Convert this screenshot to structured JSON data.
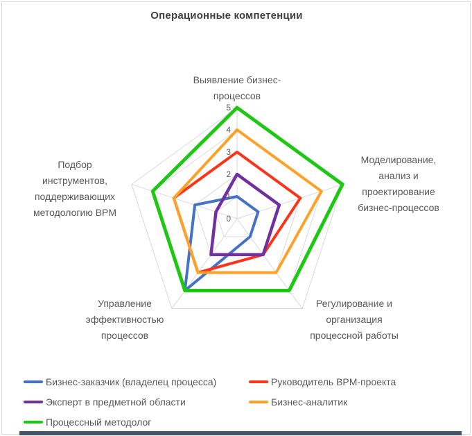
{
  "title": "Операционные компетенции",
  "chart_data": {
    "type": "radar",
    "title": "Операционные компетенции",
    "axes": [
      "Выявление бизнес-процессов",
      "Моделирование, анализ и проектирование бизнес-процессов",
      "Регулирование и организация процессной работы",
      "Управление эффективностью процессов",
      "Подбор инструментов, поддерживающих методологию BPM"
    ],
    "axis_labels_display": [
      "Выявление бизнес-\nпроцессов",
      "Моделирование,\nанализ и\nпроектирование\nбизнес-процессов",
      "Регулирование и\nорганизация\nпроцессной работы",
      "Управление\nэффективностью\nпроцессов",
      "Подбор\nинструментов,\nподдерживающих\nметодологию BPM"
    ],
    "ticks": [
      "0",
      "1",
      "2",
      "3",
      "4",
      "5"
    ],
    "axis_min": 0,
    "axis_max": 5,
    "gridline_color": "#d9d9d9",
    "text_color": "#595959",
    "legend_position": "bottom",
    "series": [
      {
        "name": "Бизнес-заказчик (владелец процесса)",
        "color": "#4472C4",
        "width": 4,
        "values": [
          1,
          1,
          1,
          4,
          2
        ]
      },
      {
        "name": "Руководитель BPM-проекта",
        "color": "#FE3318",
        "width": 4,
        "values": [
          3,
          3,
          2,
          3,
          3
        ]
      },
      {
        "name": "Эксперт в предметной области",
        "color": "#7030A0",
        "width": 4.5,
        "values": [
          2,
          2,
          2,
          2,
          1
        ]
      },
      {
        "name": "Бизнес-аналитик",
        "color": "#FFA126",
        "width": 4,
        "values": [
          4,
          4,
          3,
          3,
          3
        ]
      },
      {
        "name": "Процессный методолог",
        "color": "#1EC712",
        "width": 5,
        "values": [
          5,
          5,
          4,
          4,
          4
        ]
      }
    ]
  }
}
